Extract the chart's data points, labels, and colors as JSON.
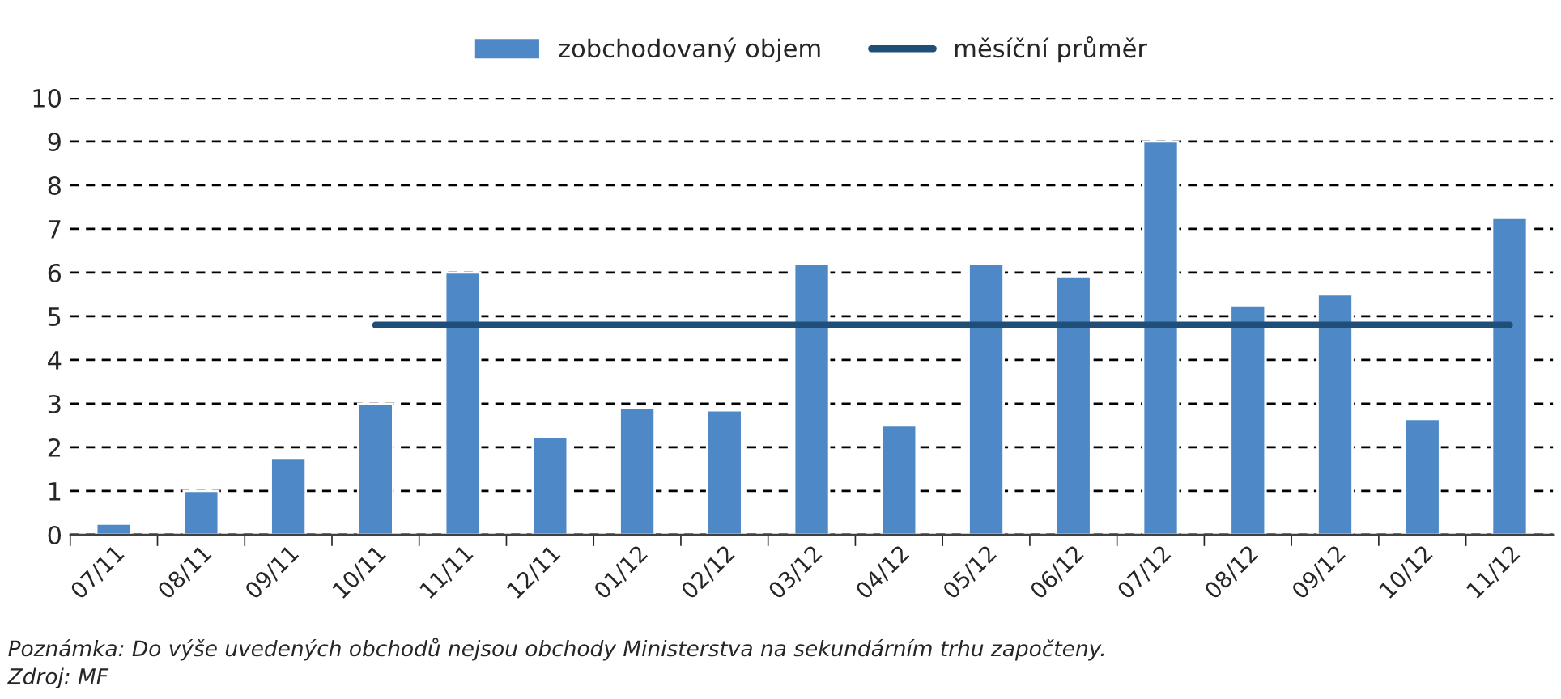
{
  "chart_data": {
    "type": "bar",
    "categories": [
      "07/11",
      "08/11",
      "09/11",
      "10/11",
      "11/11",
      "12/11",
      "01/12",
      "02/12",
      "03/12",
      "04/12",
      "05/12",
      "06/12",
      "07/12",
      "08/12",
      "09/12",
      "10/12",
      "11/12"
    ],
    "series": [
      {
        "name": "zobchodovaný objem",
        "color": "#4f88c6",
        "values": [
          0.25,
          1.0,
          1.76,
          3.0,
          6.0,
          2.24,
          2.9,
          2.85,
          6.2,
          2.5,
          6.2,
          5.9,
          9.0,
          5.25,
          5.5,
          2.65,
          7.25
        ]
      },
      {
        "name": "měsíční průměr",
        "type": "line",
        "color": "#1f4e79",
        "values": [
          null,
          null,
          null,
          4.8,
          4.8,
          4.8,
          4.8,
          4.8,
          4.8,
          4.8,
          4.8,
          4.8,
          4.8,
          4.8,
          4.8,
          4.8,
          4.8
        ]
      }
    ],
    "ylim": [
      0,
      10
    ],
    "yticks": [
      0,
      1,
      2,
      3,
      4,
      5,
      6,
      7,
      8,
      9,
      10
    ],
    "grid": "y",
    "legend": "top",
    "marker": "none",
    "line_style": "solid",
    "annotations": [
      "Poznámka: Do výše uvedených obchodů nejsou obchody Ministerstva na sekundárním trhu započteny.",
      "Zdroj: MF"
    ]
  }
}
